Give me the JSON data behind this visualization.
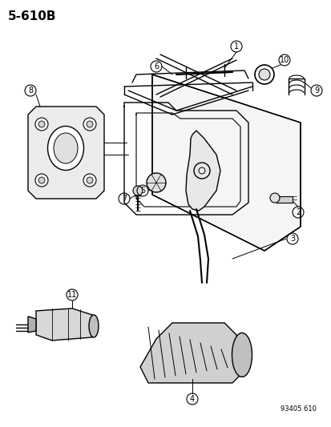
{
  "title": "5-610B",
  "ref_code": "93405 610",
  "background": "#ffffff",
  "line_color": "#000000",
  "part_numbers": [
    1,
    2,
    3,
    4,
    5,
    6,
    7,
    8,
    9,
    10,
    11
  ],
  "figsize": [
    4.14,
    5.33
  ],
  "dpi": 100
}
